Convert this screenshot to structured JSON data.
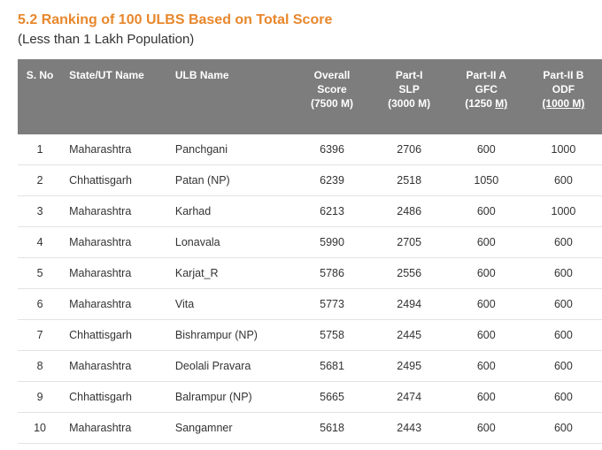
{
  "title": "5.2 Ranking of 100 ULBS Based on Total Score",
  "subtitle": "(Less than 1 Lakh Population)",
  "columns": {
    "sno": "S. No",
    "state": "State/UT Name",
    "ulb": "ULB Name",
    "overall_l1": "Overall",
    "overall_l2": "Score",
    "overall_l3": "(7500 M)",
    "p1_l1": "Part-I",
    "p1_l2": "SLP",
    "p1_l3": "(3000 M)",
    "p2a_l1": "Part-II A",
    "p2a_l2": "GFC",
    "p2a_l3a": "(1250 ",
    "p2a_l3b": "M)",
    "p2b_l1": "Part-II B",
    "p2b_l2": "ODF",
    "p2b_l3": "(1000 M)"
  },
  "rows": [
    {
      "sno": "1",
      "state": "Maharashtra",
      "ulb": "Panchgani",
      "overall": "6396",
      "p1": "2706",
      "p2a": "600",
      "p2b": "1000"
    },
    {
      "sno": "2",
      "state": "Chhattisgarh",
      "ulb": "Patan (NP)",
      "overall": "6239",
      "p1": "2518",
      "p2a": "1050",
      "p2b": "600"
    },
    {
      "sno": "3",
      "state": "Maharashtra",
      "ulb": "Karhad",
      "overall": "6213",
      "p1": "2486",
      "p2a": "600",
      "p2b": "1000"
    },
    {
      "sno": "4",
      "state": "Maharashtra",
      "ulb": "Lonavala",
      "overall": "5990",
      "p1": "2705",
      "p2a": "600",
      "p2b": "600"
    },
    {
      "sno": "5",
      "state": "Maharashtra",
      "ulb": "Karjat_R",
      "overall": "5786",
      "p1": "2556",
      "p2a": "600",
      "p2b": "600"
    },
    {
      "sno": "6",
      "state": "Maharashtra",
      "ulb": "Vita",
      "overall": "5773",
      "p1": "2494",
      "p2a": "600",
      "p2b": "600"
    },
    {
      "sno": "7",
      "state": "Chhattisgarh",
      "ulb": "Bishrampur (NP)",
      "overall": "5758",
      "p1": "2445",
      "p2a": "600",
      "p2b": "600"
    },
    {
      "sno": "8",
      "state": "Maharashtra",
      "ulb": "Deolali Pravara",
      "overall": "5681",
      "p1": "2495",
      "p2a": "600",
      "p2b": "600"
    },
    {
      "sno": "9",
      "state": "Chhattisgarh",
      "ulb": "Balrampur (NP)",
      "overall": "5665",
      "p1": "2474",
      "p2a": "600",
      "p2b": "600"
    },
    {
      "sno": "10",
      "state": "Maharashtra",
      "ulb": "Sangamner",
      "overall": "5618",
      "p1": "2443",
      "p2a": "600",
      "p2b": "600"
    }
  ],
  "style": {
    "title_color": "#e8872c",
    "header_bg": "#7d7d7d",
    "header_fg": "#ffffff",
    "row_border": "#e3e3e3",
    "text_color": "#333333"
  }
}
